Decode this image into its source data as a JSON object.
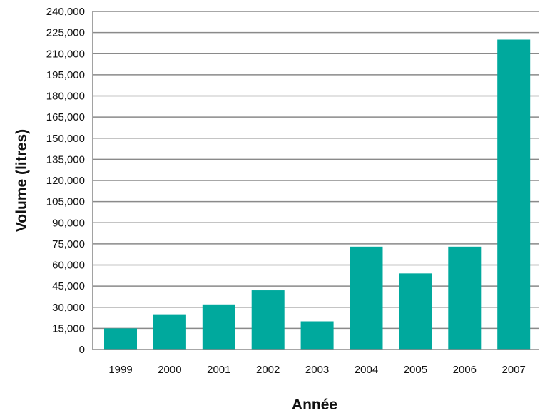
{
  "chart_data": {
    "type": "bar",
    "categories": [
      "1999",
      "2000",
      "2001",
      "2002",
      "2003",
      "2004",
      "2005",
      "2006",
      "2007"
    ],
    "values": [
      15000,
      25000,
      32000,
      42000,
      20000,
      73000,
      54000,
      73000,
      220000
    ],
    "xlabel": "Année",
    "ylabel": "Volume (litres)",
    "ylim": [
      0,
      240000
    ],
    "y_ticks": [
      "0",
      "15,000",
      "30,000",
      "45,000",
      "60,000",
      "75,000",
      "90,000",
      "105,000",
      "120,000",
      "135,000",
      "150,000",
      "165,000",
      "180,000",
      "195,000",
      "210,000",
      "225,000",
      "240,000"
    ],
    "y_tick_values": [
      0,
      15000,
      30000,
      45000,
      60000,
      75000,
      90000,
      105000,
      120000,
      135000,
      150000,
      165000,
      180000,
      195000,
      210000,
      225000,
      240000
    ],
    "grid": true,
    "legend": "none",
    "bar_color": "#00a99d"
  }
}
